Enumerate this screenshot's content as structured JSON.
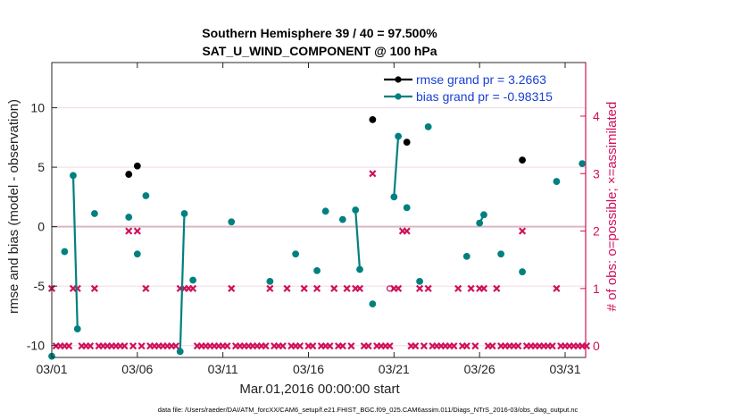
{
  "chart_data": {
    "type": "scatter",
    "title_line1": "Southern Hemisphere 39 / 40 = 97.500%",
    "title_line2": "SAT_U_WIND_COMPONENT @ 100 hPa",
    "xlabel": "Mar.01,2016 00:00:00 start",
    "ylabel_left": "rmse and bias (model - observation)",
    "ylabel_right": "# of obs: o=possible; ×=assimilated",
    "footer": "data file: /Users/raeder/DAI/ATM_forcXX/CAM6_setup/f.e21.FHIST_BGC.f09_025.CAM6assim.011/Diags_NTrS_2016-03/obs_diag_output.nc",
    "xlim": [
      0,
      31.2
    ],
    "ylim_left": [
      -11,
      13.8
    ],
    "ylim_right": [
      -0.2,
      4.933
    ],
    "x_ticks": [
      {
        "x": 0,
        "label": "03/01"
      },
      {
        "x": 5,
        "label": "03/06"
      },
      {
        "x": 10,
        "label": "03/11"
      },
      {
        "x": 15,
        "label": "03/16"
      },
      {
        "x": 20,
        "label": "03/21"
      },
      {
        "x": 25,
        "label": "03/26"
      },
      {
        "x": 30,
        "label": "03/31"
      }
    ],
    "y_ticks_left": [
      -10,
      -5,
      0,
      5,
      10
    ],
    "y_ticks_right": [
      0,
      1,
      2,
      3,
      4
    ],
    "colors": {
      "rmse": "#000000",
      "bias": "#008080",
      "obs": "#d0105a",
      "legend_text": "#1a3fd0",
      "zero_line": "#d8b8c4",
      "grid": "#f0dbe3"
    },
    "legend": [
      {
        "key": "rmse",
        "label": "rmse grand pr = 3.2663"
      },
      {
        "key": "bias",
        "label": "bias grand pr = -0.98315"
      }
    ],
    "series": [
      {
        "name": "rmse",
        "segments": [
          [
            [
              4.5,
              4.4
            ]
          ],
          [
            [
              5.0,
              5.1
            ]
          ],
          [
            [
              18.75,
              9.0
            ]
          ],
          [
            [
              20.75,
              7.1
            ]
          ],
          [
            [
              27.5,
              5.6
            ]
          ]
        ]
      },
      {
        "name": "bias",
        "segments": [
          [
            [
              0.0,
              -10.9
            ]
          ],
          [
            [
              0.75,
              -2.1
            ]
          ],
          [
            [
              1.25,
              4.3
            ],
            [
              1.5,
              -8.6
            ]
          ],
          [
            [
              2.5,
              1.1
            ]
          ],
          [
            [
              4.5,
              0.8
            ]
          ],
          [
            [
              5.0,
              -2.3
            ]
          ],
          [
            [
              5.5,
              2.6
            ]
          ],
          [
            [
              7.5,
              -10.5
            ],
            [
              7.75,
              1.1
            ]
          ],
          [
            [
              8.25,
              -4.5
            ]
          ],
          [
            [
              10.5,
              0.4
            ]
          ],
          [
            [
              12.75,
              -4.6
            ]
          ],
          [
            [
              14.25,
              -2.3
            ]
          ],
          [
            [
              15.5,
              -3.7
            ]
          ],
          [
            [
              16.0,
              1.3
            ]
          ],
          [
            [
              17.0,
              0.6
            ]
          ],
          [
            [
              17.75,
              1.4
            ],
            [
              18.0,
              -3.6
            ]
          ],
          [
            [
              18.75,
              -6.5
            ]
          ],
          [
            [
              20.0,
              2.5
            ],
            [
              20.25,
              7.6
            ]
          ],
          [
            [
              20.75,
              1.6
            ]
          ],
          [
            [
              21.5,
              -4.6
            ]
          ],
          [
            [
              22.0,
              8.4
            ]
          ],
          [
            [
              24.25,
              -2.5
            ]
          ],
          [
            [
              25.0,
              0.3
            ],
            [
              25.25,
              1.0
            ]
          ],
          [
            [
              26.25,
              -2.3
            ]
          ],
          [
            [
              27.5,
              -3.8
            ]
          ],
          [
            [
              29.5,
              3.8
            ]
          ],
          [
            [
              31.0,
              5.3
            ]
          ]
        ]
      }
    ],
    "obs_assimilated": [
      [
        0,
        1
      ],
      [
        0.25,
        0
      ],
      [
        0.5,
        0
      ],
      [
        0.75,
        0
      ],
      [
        1,
        0
      ],
      [
        1.25,
        1
      ],
      [
        1.5,
        1
      ],
      [
        1.75,
        0
      ],
      [
        2,
        0
      ],
      [
        2.25,
        0
      ],
      [
        2.5,
        1
      ],
      [
        2.75,
        0
      ],
      [
        3,
        0
      ],
      [
        3.25,
        0
      ],
      [
        3.5,
        0
      ],
      [
        3.75,
        0
      ],
      [
        4,
        0
      ],
      [
        4.25,
        0
      ],
      [
        4.5,
        2
      ],
      [
        4.75,
        0
      ],
      [
        5,
        2
      ],
      [
        5.25,
        0
      ],
      [
        5.5,
        1
      ],
      [
        5.75,
        0
      ],
      [
        6,
        0
      ],
      [
        6.25,
        0
      ],
      [
        6.5,
        0
      ],
      [
        6.75,
        0
      ],
      [
        7,
        0
      ],
      [
        7.25,
        0
      ],
      [
        7.5,
        1
      ],
      [
        7.75,
        1
      ],
      [
        8,
        1
      ],
      [
        8.25,
        1
      ],
      [
        8.5,
        0
      ],
      [
        8.75,
        0
      ],
      [
        9,
        0
      ],
      [
        9.25,
        0
      ],
      [
        9.5,
        0
      ],
      [
        9.75,
        0
      ],
      [
        10,
        0
      ],
      [
        10.25,
        0
      ],
      [
        10.5,
        1
      ],
      [
        10.75,
        0
      ],
      [
        11,
        0
      ],
      [
        11.25,
        0
      ],
      [
        11.5,
        0
      ],
      [
        11.75,
        0
      ],
      [
        12,
        0
      ],
      [
        12.25,
        0
      ],
      [
        12.5,
        0
      ],
      [
        12.75,
        1
      ],
      [
        13,
        0
      ],
      [
        13.25,
        0
      ],
      [
        13.5,
        0
      ],
      [
        13.75,
        1
      ],
      [
        14,
        0
      ],
      [
        14.25,
        0
      ],
      [
        14.5,
        0
      ],
      [
        14.75,
        1
      ],
      [
        15,
        0
      ],
      [
        15.25,
        0
      ],
      [
        15.5,
        1
      ],
      [
        15.75,
        0
      ],
      [
        16,
        0
      ],
      [
        16.25,
        0
      ],
      [
        16.5,
        1
      ],
      [
        16.75,
        0
      ],
      [
        17,
        0
      ],
      [
        17.25,
        1
      ],
      [
        17.5,
        0
      ],
      [
        17.75,
        1
      ],
      [
        18,
        1
      ],
      [
        18.25,
        0
      ],
      [
        18.5,
        0
      ],
      [
        18.75,
        3
      ],
      [
        19,
        0
      ],
      [
        19.25,
        0
      ],
      [
        19.5,
        0
      ],
      [
        19.75,
        0
      ],
      [
        20,
        1
      ],
      [
        20.25,
        1
      ],
      [
        20.5,
        2
      ],
      [
        20.75,
        2
      ],
      [
        21,
        0
      ],
      [
        21.25,
        0
      ],
      [
        21.5,
        1
      ],
      [
        21.75,
        0
      ],
      [
        22,
        1
      ],
      [
        22.25,
        0
      ],
      [
        22.5,
        0
      ],
      [
        22.75,
        0
      ],
      [
        23,
        0
      ],
      [
        23.25,
        0
      ],
      [
        23.5,
        0
      ],
      [
        23.75,
        1
      ],
      [
        24,
        0
      ],
      [
        24.25,
        0
      ],
      [
        24.5,
        1
      ],
      [
        24.75,
        0
      ],
      [
        25,
        1
      ],
      [
        25.25,
        1
      ],
      [
        25.5,
        0
      ],
      [
        25.75,
        0
      ],
      [
        26,
        1
      ],
      [
        26.25,
        0
      ],
      [
        26.5,
        0
      ],
      [
        26.75,
        0
      ],
      [
        27,
        0
      ],
      [
        27.25,
        0
      ],
      [
        27.5,
        2
      ],
      [
        27.75,
        0
      ],
      [
        28,
        0
      ],
      [
        28.25,
        0
      ],
      [
        28.5,
        0
      ],
      [
        28.75,
        0
      ],
      [
        29,
        0
      ],
      [
        29.25,
        0
      ],
      [
        29.5,
        1
      ],
      [
        29.75,
        0
      ],
      [
        30,
        0
      ],
      [
        30.25,
        0
      ],
      [
        30.5,
        0
      ],
      [
        30.75,
        0
      ],
      [
        31,
        0
      ],
      [
        31.25,
        0
      ]
    ],
    "obs_possible_only": [
      [
        19.75,
        1
      ]
    ]
  }
}
